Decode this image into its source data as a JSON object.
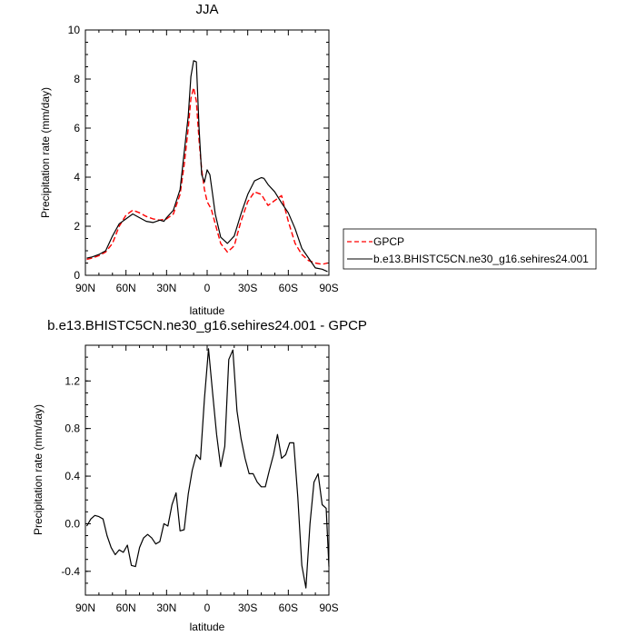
{
  "chart_data": [
    {
      "type": "line",
      "title": "JJA",
      "xlabel": "latitude",
      "ylabel": "Precipitation rate (mm/day)",
      "xlim": [
        90,
        -90
      ],
      "ylim": [
        0,
        10
      ],
      "x_ticks": [
        {
          "value": 90,
          "label": "90N"
        },
        {
          "value": 60,
          "label": "60N"
        },
        {
          "value": 30,
          "label": "30N"
        },
        {
          "value": 0,
          "label": "0"
        },
        {
          "value": -30,
          "label": "30S"
        },
        {
          "value": -60,
          "label": "60S"
        },
        {
          "value": -90,
          "label": "90S"
        }
      ],
      "y_ticks": [
        {
          "value": 0,
          "label": "0"
        },
        {
          "value": 2,
          "label": "2"
        },
        {
          "value": 4,
          "label": "4"
        },
        {
          "value": 6,
          "label": "6"
        },
        {
          "value": 8,
          "label": "8"
        },
        {
          "value": 10,
          "label": "10"
        }
      ],
      "legend_position": "right",
      "series": [
        {
          "name": "GPCP",
          "color": "#ff0000",
          "style": "dashed",
          "x": [
            89,
            85,
            80,
            75,
            70,
            65,
            60,
            55,
            50,
            45,
            40,
            35,
            30,
            25,
            20,
            17,
            14,
            12,
            10,
            8,
            6,
            4,
            2,
            0,
            -3,
            -6,
            -10,
            -15,
            -20,
            -25,
            -30,
            -35,
            -40,
            -45,
            -50,
            -55,
            -60,
            -65,
            -70,
            -75,
            -80,
            -85,
            -89
          ],
          "y": [
            0.65,
            0.7,
            0.8,
            0.95,
            1.3,
            2.0,
            2.45,
            2.65,
            2.55,
            2.4,
            2.3,
            2.25,
            2.3,
            2.5,
            3.3,
            4.5,
            6.0,
            7.2,
            7.65,
            7.1,
            5.5,
            4.3,
            3.5,
            3.0,
            2.7,
            2.1,
            1.3,
            0.95,
            1.2,
            2.2,
            3.0,
            3.4,
            3.3,
            2.85,
            3.05,
            3.25,
            2.2,
            1.3,
            0.85,
            0.6,
            0.5,
            0.45,
            0.5
          ]
        },
        {
          "name": "b.e13.BHISTC5CN.ne30_g16.sehires24.001",
          "color": "#000000",
          "style": "solid",
          "x": [
            89,
            85,
            80,
            75,
            70,
            65,
            60,
            55,
            50,
            45,
            40,
            35,
            32,
            30,
            25,
            20,
            17,
            14,
            12,
            10,
            8,
            6,
            4,
            2,
            0,
            -2,
            -4,
            -6,
            -10,
            -15,
            -20,
            -25,
            -30,
            -35,
            -40,
            -42,
            -45,
            -50,
            -55,
            -60,
            -65,
            -70,
            -75,
            -80,
            -85,
            -89
          ],
          "y": [
            0.7,
            0.75,
            0.85,
            1.0,
            1.6,
            2.1,
            2.3,
            2.5,
            2.35,
            2.2,
            2.15,
            2.25,
            2.2,
            2.35,
            2.65,
            3.5,
            5.0,
            6.5,
            8.1,
            8.75,
            8.7,
            6.0,
            4.1,
            3.8,
            4.3,
            4.1,
            3.3,
            2.5,
            1.55,
            1.3,
            1.6,
            2.5,
            3.3,
            3.85,
            3.98,
            3.95,
            3.7,
            3.4,
            2.95,
            2.55,
            1.9,
            1.1,
            0.7,
            0.3,
            0.25,
            0.15
          ]
        }
      ]
    },
    {
      "type": "line",
      "title": "b.e13.BHISTC5CN.ne30_g16.sehires24.001 - GPCP",
      "xlabel": "latitude",
      "ylabel": "Precipitation rate (mm/day)",
      "xlim": [
        90,
        -90
      ],
      "ylim": [
        -0.6,
        1.5
      ],
      "x_ticks": [
        {
          "value": 90,
          "label": "90N"
        },
        {
          "value": 60,
          "label": "60N"
        },
        {
          "value": 30,
          "label": "30N"
        },
        {
          "value": 0,
          "label": "0"
        },
        {
          "value": -30,
          "label": "30S"
        },
        {
          "value": -60,
          "label": "60S"
        },
        {
          "value": -90,
          "label": "90S"
        }
      ],
      "y_ticks": [
        {
          "value": -0.4,
          "label": "-0.4"
        },
        {
          "value": 0.0,
          "label": "0.0"
        },
        {
          "value": 0.4,
          "label": "0.4"
        },
        {
          "value": 0.8,
          "label": "0.8"
        },
        {
          "value": 1.2,
          "label": "1.2"
        }
      ],
      "series": [
        {
          "name": "",
          "color": "#000000",
          "style": "solid",
          "x": [
            89,
            86,
            83,
            80,
            77,
            74,
            71,
            68,
            65,
            62,
            59,
            56,
            53,
            50,
            47,
            44,
            41,
            38,
            35,
            32,
            29,
            26,
            23,
            20,
            17,
            14,
            11,
            8,
            5,
            2,
            -1,
            -4,
            -7,
            -10,
            -13,
            -16,
            -19,
            -22,
            -25,
            -28,
            -31,
            -34,
            -37,
            -40,
            -43,
            -46,
            -49,
            -52,
            -55,
            -58,
            -61,
            -64,
            -67,
            -70,
            -73,
            -76,
            -79,
            -82,
            -85,
            -88,
            -90
          ],
          "y": [
            -0.02,
            0.04,
            0.07,
            0.06,
            0.04,
            -0.1,
            -0.2,
            -0.26,
            -0.22,
            -0.24,
            -0.18,
            -0.35,
            -0.36,
            -0.2,
            -0.12,
            -0.09,
            -0.12,
            -0.17,
            -0.15,
            0.0,
            -0.02,
            0.16,
            0.26,
            -0.06,
            -0.05,
            0.25,
            0.45,
            0.58,
            0.54,
            1.05,
            1.47,
            1.1,
            0.75,
            0.48,
            0.65,
            1.38,
            1.46,
            0.95,
            0.72,
            0.55,
            0.42,
            0.42,
            0.35,
            0.31,
            0.31,
            0.45,
            0.58,
            0.75,
            0.55,
            0.58,
            0.68,
            0.68,
            0.22,
            -0.35,
            -0.54,
            0.0,
            0.35,
            0.42,
            0.16,
            0.13,
            -0.36
          ]
        }
      ]
    }
  ]
}
